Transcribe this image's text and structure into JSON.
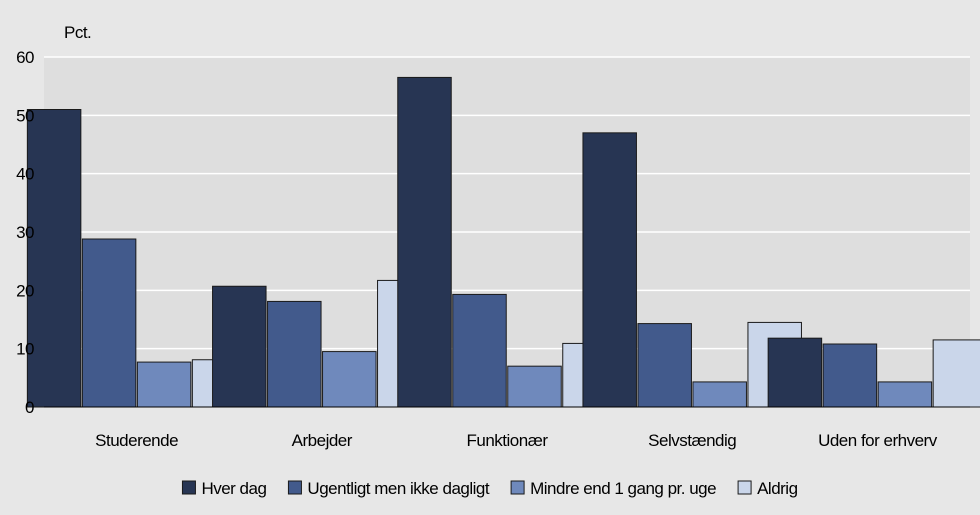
{
  "chart_data": {
    "type": "bar",
    "ylabel": "Pct.",
    "ylim": [
      0,
      60
    ],
    "yticks": [
      0,
      10,
      20,
      30,
      40,
      50,
      60
    ],
    "grid": true,
    "legend_position": "bottom",
    "categories": [
      "Studerende",
      "Arbejder",
      "Funktionær",
      "Selvstændig",
      "Uden for erhverv"
    ],
    "series": [
      {
        "name": "Hver dag",
        "color": "#273553",
        "values": [
          51,
          20.7,
          56.5,
          47,
          11.8
        ]
      },
      {
        "name": "Ugentligt men ikke dagligt",
        "color": "#425a8c",
        "values": [
          28.8,
          18.1,
          19.3,
          14.3,
          10.8
        ]
      },
      {
        "name": "Mindre end 1 gang pr. uge",
        "color": "#6f89bc",
        "values": [
          7.7,
          9.5,
          7,
          4.3,
          4.3
        ]
      },
      {
        "name": "Aldrig",
        "color": "#cad6ea",
        "values": [
          8.1,
          21.7,
          10.9,
          14.5,
          11.5
        ]
      }
    ]
  }
}
